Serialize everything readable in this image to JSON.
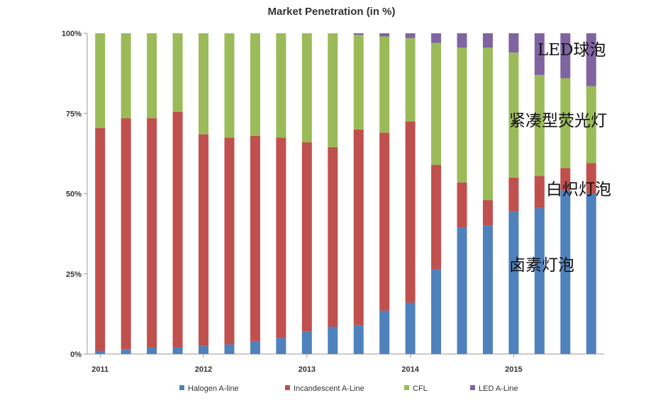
{
  "chart_data": {
    "type": "bar",
    "stacked": true,
    "percent": true,
    "title": "Market Penetration (in %)",
    "xlabel": "",
    "ylabel": "",
    "ylim": [
      0,
      100
    ],
    "y_ticks": [
      "0%",
      "25%",
      "50%",
      "75%",
      "100%"
    ],
    "x_tick_labels": [
      {
        "bar": 0,
        "label": "2011"
      },
      {
        "bar": 4,
        "label": "2012"
      },
      {
        "bar": 8,
        "label": "2013"
      },
      {
        "bar": 12,
        "label": "2014"
      },
      {
        "bar": 16,
        "label": "2015"
      }
    ],
    "grid": false,
    "legend_position": "bottom",
    "series": [
      {
        "name": "Halogen A-line",
        "color": "#4f81bd",
        "values": [
          1,
          1.5,
          2,
          2,
          2.5,
          3,
          4,
          5,
          7,
          8.5,
          9,
          13.5,
          16,
          26.5,
          39.5,
          40,
          44.5,
          45.5,
          51,
          50
        ]
      },
      {
        "name": "Incandescent A-Line",
        "color": "#c0504d",
        "values": [
          69.5,
          72,
          71.5,
          73.5,
          66,
          64.5,
          64,
          62.5,
          59,
          56,
          61,
          55.5,
          56.5,
          32.5,
          14,
          8,
          10.5,
          10,
          7,
          9.5
        ]
      },
      {
        "name": "CFL",
        "color": "#9bbb59",
        "values": [
          29.5,
          26.5,
          26.5,
          24.5,
          31.5,
          32.5,
          32,
          32.5,
          34,
          35.5,
          29.5,
          30,
          26,
          38,
          42,
          47.5,
          39,
          31.5,
          28,
          24
        ]
      },
      {
        "name": "LED A-Line",
        "color": "#8064a2",
        "values": [
          0,
          0,
          0,
          0,
          0,
          0,
          0,
          0,
          0,
          0,
          0.5,
          1,
          1.5,
          3,
          4.5,
          4.5,
          6,
          13,
          14,
          16.5
        ]
      }
    ],
    "annotations": [
      "LED球泡",
      "紧凑型荧光灯",
      "白炽灯泡",
      "卤素灯泡"
    ]
  }
}
